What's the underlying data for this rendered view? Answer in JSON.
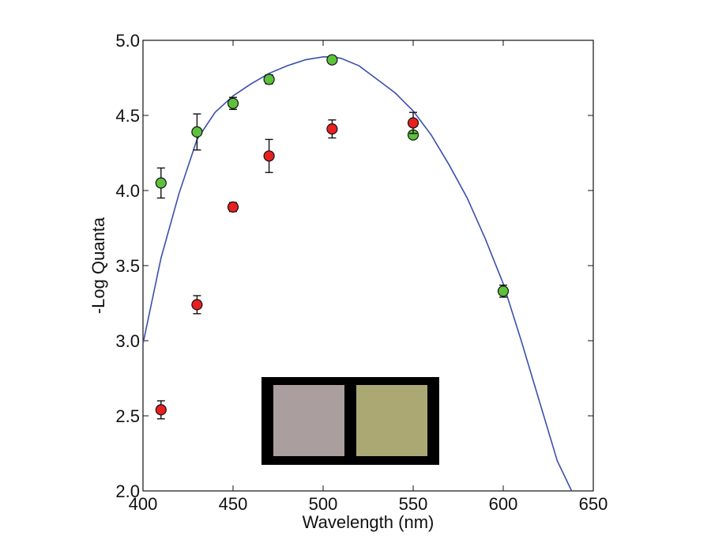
{
  "chart_data": {
    "type": "scatter",
    "title": "",
    "xlabel": "Wavelength (nm)",
    "ylabel": "-Log Quanta",
    "xlim": [
      400,
      650
    ],
    "ylim": [
      2.0,
      5.0
    ],
    "x_ticks": [
      400,
      450,
      500,
      550,
      600,
      650
    ],
    "x_tick_labels": [
      "400",
      "450",
      "500",
      "550",
      "600",
      "650"
    ],
    "y_ticks": [
      2.0,
      2.5,
      3.0,
      3.5,
      4.0,
      4.5,
      5.0
    ],
    "y_tick_labels": [
      "2.0",
      "2.5",
      "3.0",
      "3.5",
      "4.0",
      "4.5",
      "5.0"
    ],
    "grid": false,
    "legend": "none",
    "series": [
      {
        "color": "#5cc23c",
        "points": [
          {
            "x": 410,
            "y": 4.05,
            "err": 0.1
          },
          {
            "x": 430,
            "y": 4.39,
            "err": 0.12
          },
          {
            "x": 450,
            "y": 4.58,
            "err": 0.04
          },
          {
            "x": 470,
            "y": 4.74,
            "err": 0.03
          },
          {
            "x": 505,
            "y": 4.87,
            "err": 0.02
          },
          {
            "x": 550,
            "y": 4.37,
            "err": 0.02
          },
          {
            "x": 600,
            "y": 3.33,
            "err": 0.04
          }
        ]
      },
      {
        "color": "#e82020",
        "points": [
          {
            "x": 410,
            "y": 2.54,
            "err": 0.06
          },
          {
            "x": 430,
            "y": 3.24,
            "err": 0.06
          },
          {
            "x": 450,
            "y": 3.89,
            "err": 0.03
          },
          {
            "x": 470,
            "y": 4.23,
            "err": 0.11
          },
          {
            "x": 505,
            "y": 4.41,
            "err": 0.06
          },
          {
            "x": 550,
            "y": 4.45,
            "err": 0.07
          }
        ]
      }
    ],
    "curve": {
      "color": "#3a4fb0",
      "x": [
        400,
        410,
        420,
        430,
        440,
        450,
        460,
        470,
        480,
        490,
        500,
        505,
        510,
        520,
        530,
        540,
        550,
        560,
        570,
        580,
        590,
        600,
        610,
        620,
        630,
        638
      ],
      "y": [
        2.98,
        3.55,
        3.98,
        4.34,
        4.52,
        4.63,
        4.71,
        4.78,
        4.83,
        4.87,
        4.89,
        4.89,
        4.88,
        4.83,
        4.74,
        4.65,
        4.53,
        4.37,
        4.17,
        3.95,
        3.68,
        3.38,
        3.0,
        2.6,
        2.2,
        2.0
      ]
    },
    "inset": {
      "frame_color": "#000000",
      "swatches": [
        "#ab9e9f",
        "#aba874"
      ]
    }
  }
}
